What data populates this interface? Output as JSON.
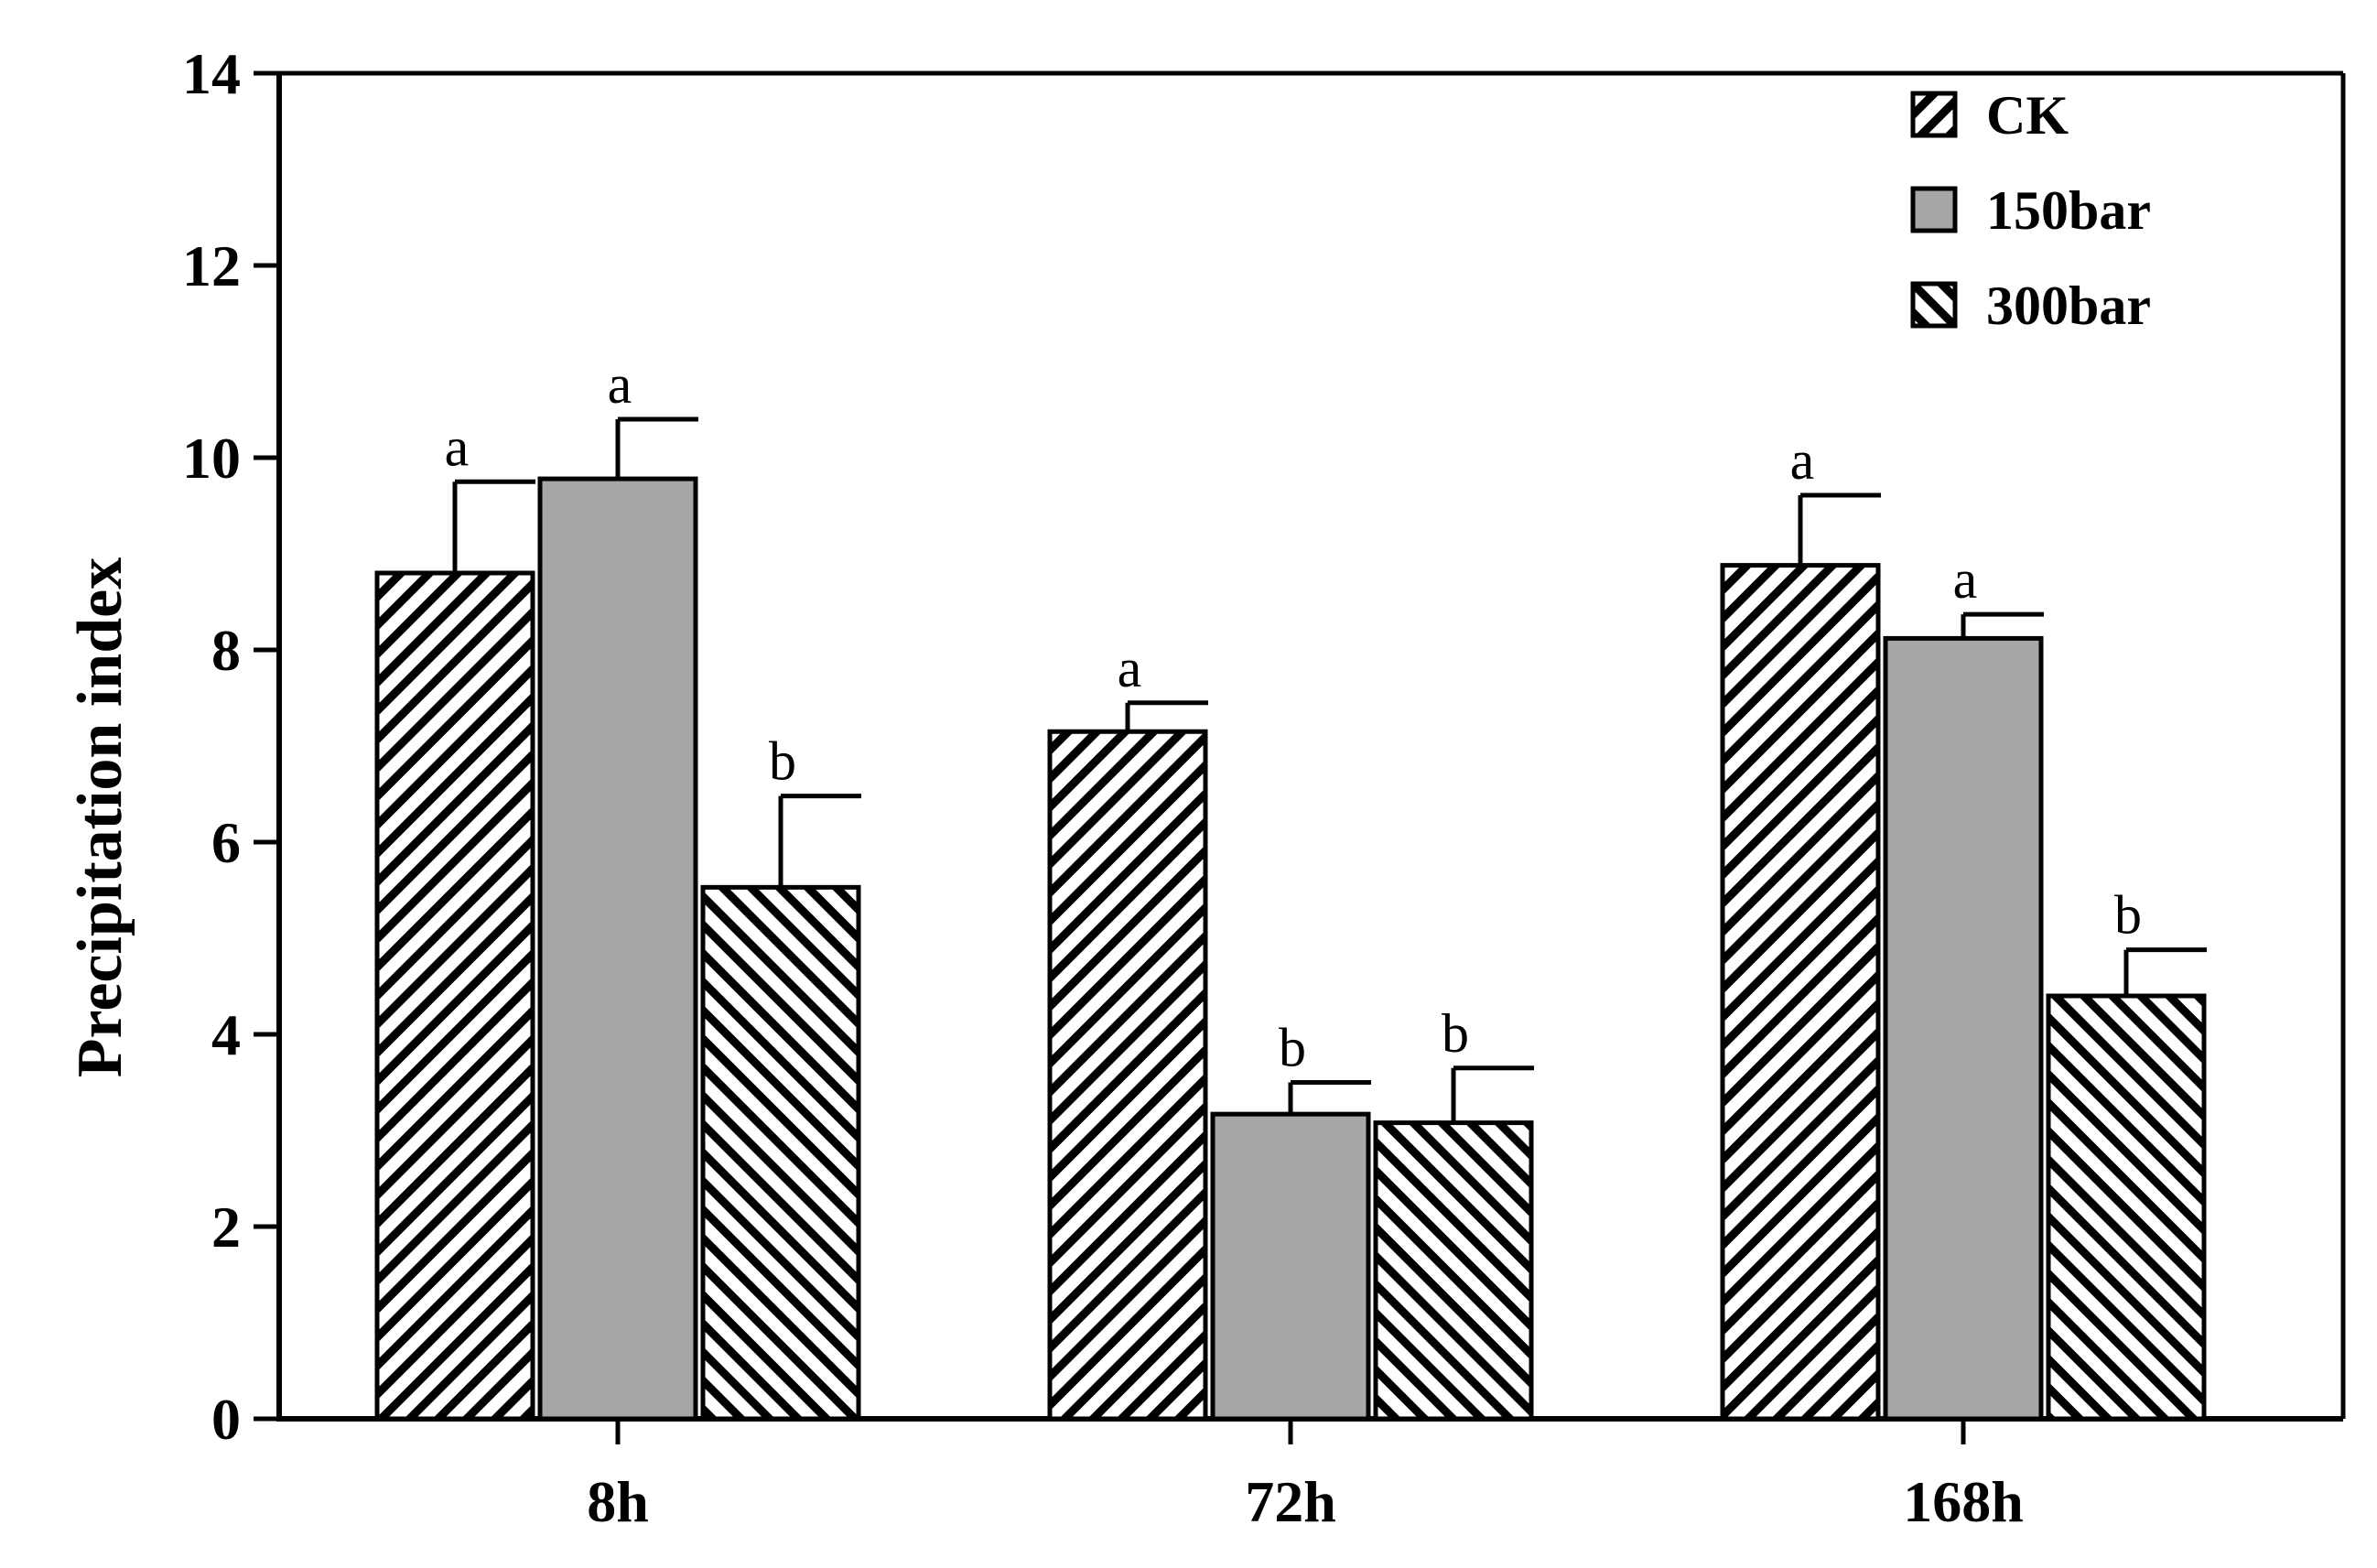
{
  "chart_data": {
    "type": "bar",
    "title": "",
    "xlabel": "",
    "ylabel": "Precipitation index",
    "ylim": [
      0,
      14
    ],
    "yticks": [
      0,
      2,
      4,
      6,
      8,
      10,
      12,
      14
    ],
    "categories": [
      "8h",
      "72h",
      "168h"
    ],
    "grid": false,
    "legend_position": "top-right",
    "series": [
      {
        "name": "CK",
        "pattern": "diagonal-forward",
        "fill": "#ffffff",
        "values": [
          8.8,
          7.15,
          8.88
        ],
        "errors": [
          0.95,
          0.3,
          0.73
        ],
        "significance": [
          "a",
          "a",
          "a"
        ]
      },
      {
        "name": "150bar",
        "pattern": "solid",
        "fill": "#a6a6a9",
        "values": [
          9.78,
          3.17,
          8.12
        ],
        "errors": [
          0.62,
          0.33,
          0.25
        ],
        "significance": [
          "a",
          "b",
          "a"
        ]
      },
      {
        "name": "300bar",
        "pattern": "diagonal-backward",
        "fill": "#ffffff",
        "values": [
          5.53,
          3.08,
          4.4
        ],
        "errors": [
          0.95,
          0.57,
          0.48
        ],
        "significance": [
          "b",
          "b",
          "b"
        ]
      }
    ]
  }
}
